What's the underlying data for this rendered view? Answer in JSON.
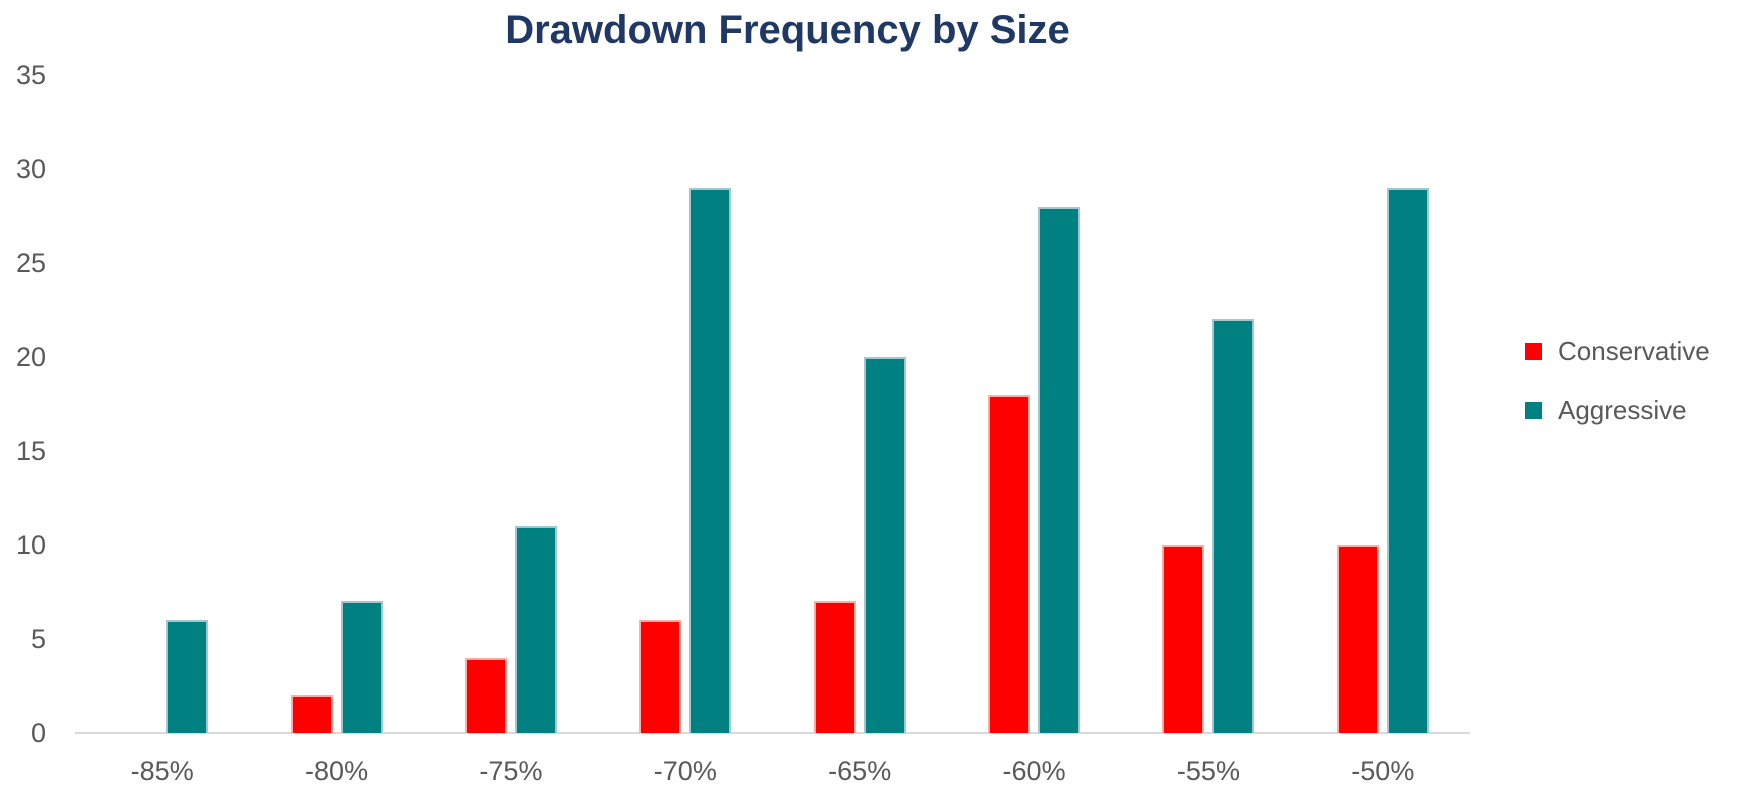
{
  "chart_data": {
    "type": "bar",
    "title": "Drawdown Frequency by Size",
    "categories": [
      "-85%",
      "-80%",
      "-75%",
      "-70%",
      "-65%",
      "-60%",
      "-55%",
      "-50%"
    ],
    "series": [
      {
        "name": "Conservative",
        "color": "#FF0000",
        "border_color": "#FFACA4",
        "values": [
          0,
          2,
          4,
          6,
          7,
          18,
          10,
          10
        ]
      },
      {
        "name": "Aggressive",
        "color": "#008080",
        "border_color": "#A3C7CE",
        "values": [
          6,
          7,
          11,
          29,
          20,
          28,
          22,
          29
        ]
      }
    ],
    "xlabel": "",
    "ylabel": "",
    "ylim": [
      0,
      35
    ],
    "yticks": [
      0,
      5,
      10,
      15,
      20,
      25,
      30,
      35
    ],
    "grid": false,
    "legend_position": "right",
    "colors": {
      "title": "#1F3864",
      "axis_text": "#595959",
      "axis_line": "#D9D9D9",
      "background": "#FFFFFF"
    }
  }
}
